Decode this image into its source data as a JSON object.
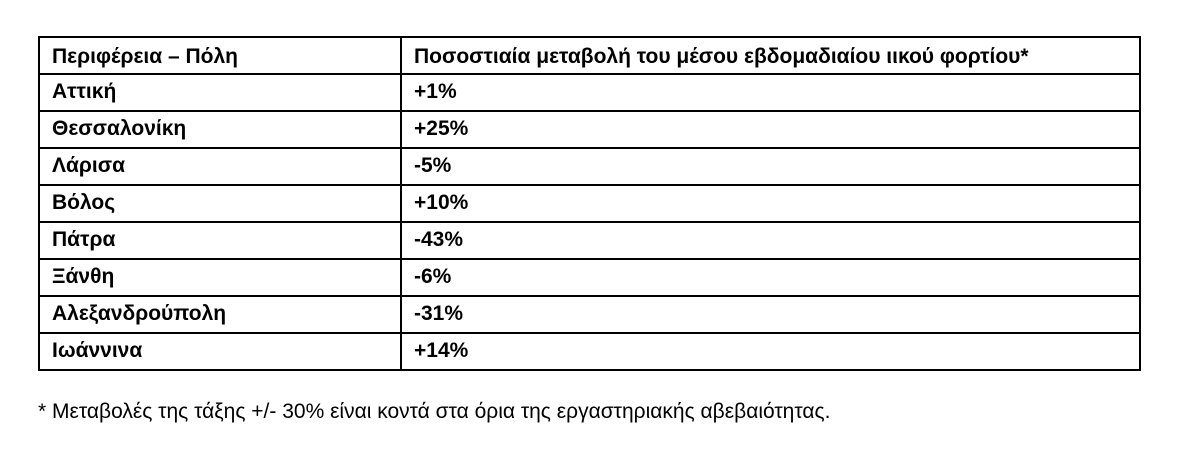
{
  "table": {
    "headers": {
      "region": "Περιφέρεια – Πόλη",
      "change": "Ποσοστιαία μεταβολή του μέσου εβδομαδιαίου ιικού φορτίου*"
    },
    "rows": [
      {
        "region": "Αττική",
        "change": "+1%"
      },
      {
        "region": "Θεσσαλονίκη",
        "change": "+25%"
      },
      {
        "region": "Λάρισα",
        "change": "-5%"
      },
      {
        "region": "Βόλος",
        "change": "+10%"
      },
      {
        "region": "Πάτρα",
        "change": "-43%"
      },
      {
        "region": "Ξάνθη",
        "change": "-6%"
      },
      {
        "region": "Αλεξανδρούπολη",
        "change": "-31%"
      },
      {
        "region": "Ιωάννινα",
        "change": "+14%"
      }
    ]
  },
  "footnote": "* Μεταβολές της τάξης +/- 30% είναι κοντά στα όρια της εργαστηριακής αβεβαιότητας."
}
